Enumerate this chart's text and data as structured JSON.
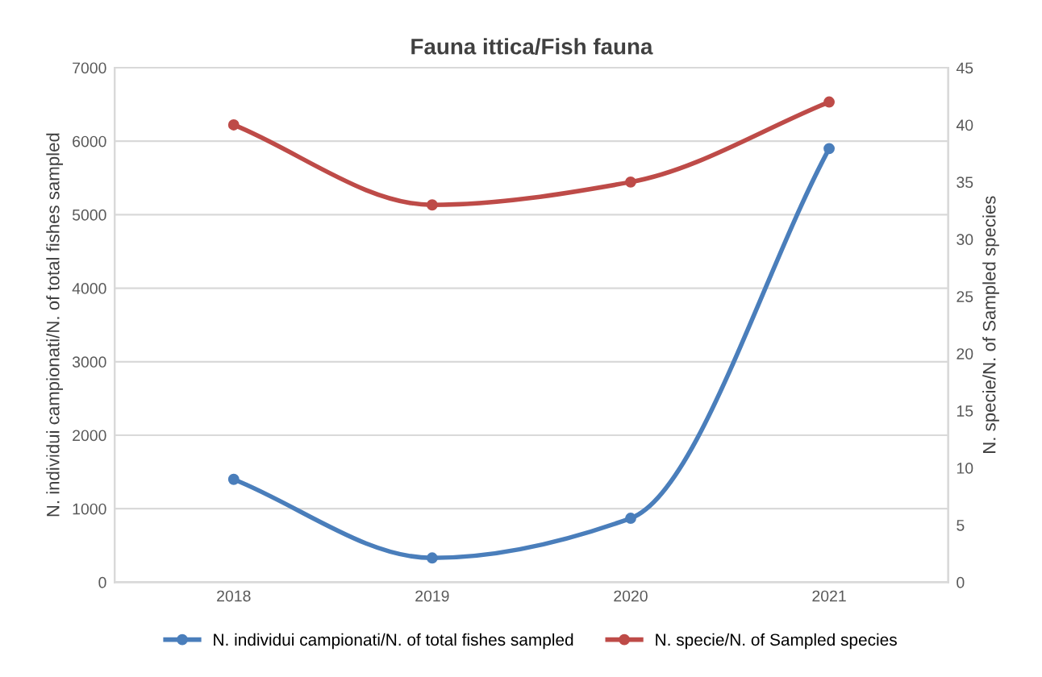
{
  "chart_data": {
    "type": "line",
    "title": "Fauna ittica/Fish fauna",
    "ylabel": "N. individui campionati/N. of total fishes sampled",
    "y2label": "N. specie/N. of Sampled species",
    "categories": [
      "2018",
      "2019",
      "2020",
      "2021"
    ],
    "series": [
      {
        "name": "N. individui campionati/N. of total fishes sampled",
        "color": "#4a7ebb",
        "values": [
          1400,
          330,
          870,
          5900
        ]
      },
      {
        "name": "N. specie/N. of Sampled species",
        "color": "#be4b48",
        "values": [
          40,
          33,
          35,
          42
        ],
        "axis": "y2"
      }
    ],
    "ylim": [
      0,
      7000
    ],
    "yticks": [
      0,
      1000,
      2000,
      3000,
      4000,
      5000,
      6000,
      7000
    ],
    "y2lim": [
      0,
      45
    ],
    "y2ticks": [
      0,
      5,
      10,
      15,
      20,
      25,
      30,
      35,
      40,
      45
    ],
    "grid": "y",
    "legend": "bottom",
    "marker": "circle",
    "line_style": "solid"
  }
}
